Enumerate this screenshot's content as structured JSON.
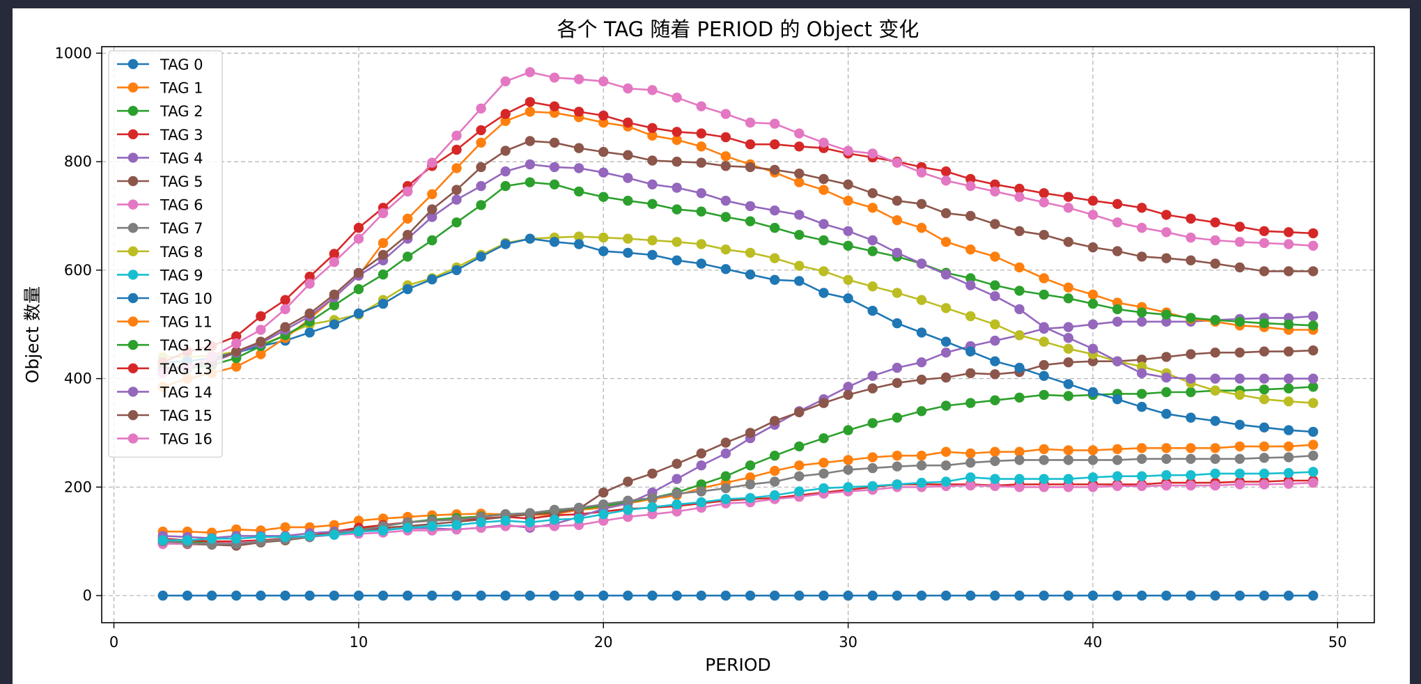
{
  "chart_data": {
    "type": "line",
    "title": "各个 TAG 随着 PERIOD 的 Object 变化",
    "xlabel": "PERIOD",
    "ylabel": "Object 数量",
    "xlim": [
      -0.5,
      51.5
    ],
    "ylim": [
      -50,
      1012
    ],
    "x_ticks": [
      0,
      10,
      20,
      30,
      40,
      50
    ],
    "y_ticks": [
      0,
      200,
      400,
      600,
      800,
      1000
    ],
    "grid": true,
    "grid_style": "dashed",
    "legend_position": "upper-left",
    "marker": "circle",
    "x": [
      2,
      3,
      4,
      5,
      6,
      7,
      8,
      9,
      10,
      11,
      12,
      13,
      14,
      15,
      16,
      17,
      18,
      19,
      20,
      21,
      22,
      23,
      24,
      25,
      26,
      27,
      28,
      29,
      30,
      31,
      32,
      33,
      34,
      35,
      36,
      37,
      38,
      39,
      40,
      41,
      42,
      43,
      44,
      45,
      46,
      47,
      48,
      49
    ],
    "series": [
      {
        "name": "TAG 0",
        "color": "#1f77b4",
        "values": [
          0,
          0,
          0,
          0,
          0,
          0,
          0,
          0,
          0,
          0,
          0,
          0,
          0,
          0,
          0,
          0,
          0,
          0,
          0,
          0,
          0,
          0,
          0,
          0,
          0,
          0,
          0,
          0,
          0,
          0,
          0,
          0,
          0,
          0,
          0,
          0,
          0,
          0,
          0,
          0,
          0,
          0,
          0,
          0,
          0,
          0,
          0,
          0
        ]
      },
      {
        "name": "TAG 1",
        "color": "#ff7f0e",
        "values": [
          118,
          118,
          116,
          122,
          120,
          126,
          126,
          130,
          138,
          142,
          145,
          148,
          150,
          151,
          150,
          148,
          150,
          158,
          162,
          170,
          178,
          185,
          198,
          208,
          218,
          230,
          240,
          245,
          250,
          255,
          258,
          258,
          265,
          262,
          265,
          265,
          270,
          268,
          268,
          270,
          272,
          272,
          272,
          272,
          275,
          275,
          275,
          278
        ]
      },
      {
        "name": "TAG 2",
        "color": "#2ca02c",
        "values": [
          100,
          98,
          98,
          95,
          98,
          102,
          108,
          115,
          122,
          128,
          135,
          140,
          143,
          146,
          150,
          152,
          155,
          160,
          165,
          172,
          180,
          190,
          205,
          220,
          240,
          258,
          275,
          290,
          305,
          318,
          328,
          340,
          350,
          355,
          360,
          365,
          370,
          368,
          370,
          372,
          372,
          375,
          375,
          378,
          378,
          380,
          382,
          385
        ]
      },
      {
        "name": "TAG 3",
        "color": "#d62728",
        "values": [
          105,
          102,
          100,
          100,
          102,
          105,
          110,
          118,
          125,
          130,
          135,
          138,
          140,
          142,
          145,
          142,
          148,
          150,
          155,
          160,
          162,
          165,
          170,
          175,
          178,
          180,
          185,
          190,
          195,
          200,
          205,
          205,
          205,
          205,
          203,
          205,
          205,
          205,
          205,
          205,
          205,
          208,
          208,
          208,
          210,
          210,
          212,
          212
        ]
      },
      {
        "name": "TAG 4",
        "color": "#9467bd",
        "values": [
          110,
          108,
          106,
          110,
          110,
          110,
          115,
          118,
          120,
          122,
          124,
          124,
          122,
          125,
          130,
          125,
          132,
          145,
          160,
          170,
          190,
          215,
          240,
          262,
          290,
          315,
          340,
          362,
          385,
          405,
          420,
          430,
          448,
          460,
          470,
          480,
          492,
          495,
          500,
          505,
          505,
          505,
          505,
          508,
          510,
          512,
          512,
          515
        ]
      },
      {
        "name": "TAG 5",
        "color": "#8c564b",
        "values": [
          96,
          95,
          94,
          92,
          98,
          102,
          108,
          115,
          120,
          125,
          128,
          132,
          136,
          140,
          145,
          150,
          152,
          160,
          190,
          210,
          225,
          243,
          262,
          282,
          300,
          322,
          338,
          355,
          370,
          382,
          392,
          398,
          402,
          410,
          408,
          412,
          425,
          430,
          432,
          432,
          435,
          440,
          445,
          448,
          448,
          450,
          450,
          452
        ]
      },
      {
        "name": "TAG 6",
        "color": "#e377c2",
        "values": [
          95,
          96,
          96,
          97,
          100,
          104,
          108,
          112,
          114,
          116,
          120,
          120,
          122,
          125,
          128,
          128,
          128,
          130,
          138,
          145,
          150,
          155,
          162,
          170,
          172,
          178,
          182,
          188,
          192,
          195,
          200,
          200,
          202,
          203,
          202,
          200,
          200,
          200,
          200,
          202,
          202,
          203,
          203,
          203,
          205,
          205,
          206,
          208
        ]
      },
      {
        "name": "TAG 7",
        "color": "#7f7f7f",
        "values": [
          100,
          97,
          95,
          95,
          100,
          104,
          108,
          115,
          120,
          128,
          135,
          138,
          140,
          145,
          150,
          152,
          158,
          162,
          168,
          175,
          180,
          188,
          192,
          198,
          205,
          210,
          220,
          225,
          232,
          235,
          238,
          240,
          240,
          245,
          248,
          250,
          250,
          250,
          250,
          250,
          252,
          252,
          252,
          252,
          252,
          254,
          255,
          258
        ]
      },
      {
        "name": "TAG 8",
        "color": "#bcbd22",
        "values": [
          440,
          440,
          442,
          450,
          462,
          480,
          500,
          508,
          518,
          545,
          572,
          585,
          605,
          628,
          650,
          658,
          660,
          662,
          660,
          658,
          655,
          652,
          648,
          638,
          632,
          622,
          608,
          598,
          582,
          570,
          558,
          545,
          530,
          515,
          500,
          480,
          468,
          455,
          445,
          432,
          422,
          410,
          392,
          378,
          370,
          362,
          358,
          355
        ]
      },
      {
        "name": "TAG 9",
        "color": "#17becf",
        "values": [
          102,
          102,
          105,
          105,
          108,
          108,
          110,
          112,
          118,
          120,
          125,
          128,
          130,
          135,
          138,
          135,
          140,
          142,
          150,
          158,
          163,
          168,
          172,
          178,
          180,
          185,
          192,
          198,
          200,
          202,
          205,
          208,
          210,
          218,
          215,
          215,
          215,
          215,
          218,
          220,
          220,
          222,
          222,
          225,
          225,
          225,
          226,
          228
        ]
      },
      {
        "name": "TAG 10",
        "color": "#1f77b4",
        "values": [
          430,
          432,
          438,
          448,
          460,
          470,
          485,
          500,
          520,
          538,
          565,
          583,
          600,
          625,
          648,
          658,
          652,
          648,
          635,
          632,
          628,
          618,
          612,
          602,
          592,
          582,
          580,
          558,
          548,
          525,
          502,
          485,
          468,
          450,
          432,
          420,
          405,
          390,
          375,
          362,
          348,
          335,
          328,
          322,
          315,
          310,
          305,
          302
        ]
      },
      {
        "name": "TAG 11",
        "color": "#ff7f0e",
        "values": [
          385,
          400,
          410,
          422,
          445,
          475,
          510,
          550,
          590,
          650,
          695,
          740,
          788,
          835,
          875,
          892,
          890,
          882,
          872,
          865,
          848,
          840,
          828,
          810,
          795,
          780,
          762,
          748,
          728,
          715,
          692,
          678,
          652,
          638,
          625,
          605,
          585,
          568,
          555,
          540,
          532,
          522,
          510,
          505,
          498,
          495,
          490,
          490
        ]
      },
      {
        "name": "TAG 12",
        "color": "#2ca02c",
        "values": [
          412,
          418,
          425,
          438,
          460,
          480,
          505,
          535,
          565,
          592,
          625,
          655,
          688,
          720,
          755,
          762,
          758,
          745,
          735,
          728,
          722,
          712,
          708,
          698,
          690,
          678,
          665,
          655,
          645,
          635,
          625,
          612,
          595,
          585,
          572,
          562,
          555,
          548,
          538,
          528,
          522,
          518,
          512,
          508,
          505,
          502,
          500,
          498
        ]
      },
      {
        "name": "TAG 13",
        "color": "#d62728",
        "values": [
          430,
          450,
          460,
          478,
          515,
          545,
          588,
          630,
          678,
          715,
          755,
          792,
          822,
          858,
          888,
          910,
          902,
          892,
          885,
          872,
          862,
          855,
          852,
          845,
          832,
          832,
          828,
          825,
          815,
          808,
          800,
          790,
          782,
          768,
          758,
          750,
          742,
          735,
          728,
          722,
          715,
          702,
          695,
          688,
          680,
          672,
          670,
          668
        ]
      },
      {
        "name": "TAG 14",
        "color": "#9467bd",
        "values": [
          418,
          420,
          430,
          448,
          465,
          490,
          515,
          550,
          590,
          618,
          658,
          698,
          730,
          755,
          782,
          795,
          790,
          788,
          780,
          770,
          758,
          752,
          742,
          728,
          718,
          710,
          702,
          685,
          672,
          655,
          632,
          612,
          592,
          572,
          552,
          528,
          495,
          475,
          455,
          432,
          410,
          402,
          400,
          400,
          400,
          400,
          400,
          400
        ]
      },
      {
        "name": "TAG 15",
        "color": "#8c564b",
        "values": [
          420,
          422,
          432,
          450,
          468,
          495,
          520,
          555,
          595,
          628,
          665,
          712,
          748,
          790,
          820,
          838,
          835,
          825,
          818,
          812,
          802,
          800,
          798,
          792,
          790,
          785,
          778,
          768,
          758,
          742,
          728,
          722,
          705,
          700,
          685,
          672,
          665,
          652,
          642,
          635,
          625,
          622,
          618,
          612,
          605,
          598,
          598,
          598
        ]
      },
      {
        "name": "TAG 16",
        "color": "#e377c2",
        "values": [
          410,
          420,
          440,
          465,
          490,
          528,
          575,
          615,
          658,
          705,
          745,
          798,
          848,
          898,
          948,
          965,
          955,
          952,
          948,
          935,
          932,
          918,
          902,
          888,
          872,
          870,
          852,
          835,
          820,
          815,
          798,
          780,
          765,
          755,
          745,
          735,
          725,
          715,
          702,
          688,
          678,
          670,
          660,
          655,
          652,
          650,
          648,
          645
        ]
      }
    ]
  }
}
